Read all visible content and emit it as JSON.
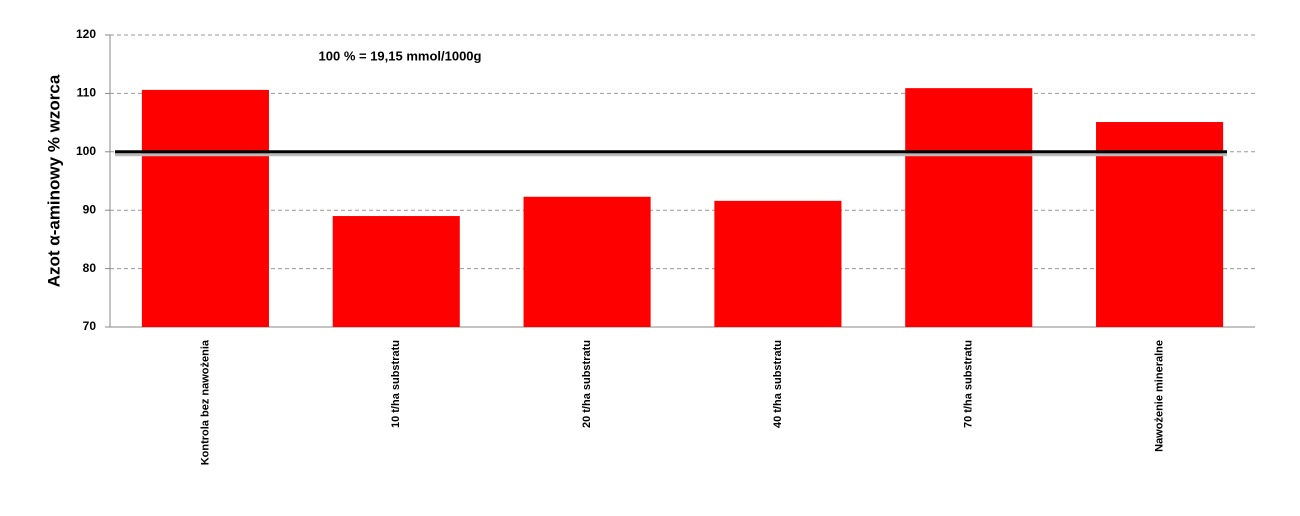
{
  "chart_data": {
    "type": "bar",
    "y_label": "Azot α-aminowy % wzorca",
    "annotation": "100 % = 19,15 mmol/1000g",
    "categories": [
      "Kontrola bez nawożenia",
      "10 t/ha substratu",
      "20 t/ha substratu",
      "40 t/ha substratu",
      "70 t/ha substratu",
      "Nawożenie mineralne"
    ],
    "values": [
      110.6,
      89.0,
      92.3,
      91.6,
      110.9,
      105.1
    ],
    "color": "#ff0000",
    "reference_line": 100,
    "ylim": [
      70,
      120
    ],
    "yticks": [
      70,
      80,
      90,
      100,
      110,
      120
    ],
    "grid": true
  }
}
